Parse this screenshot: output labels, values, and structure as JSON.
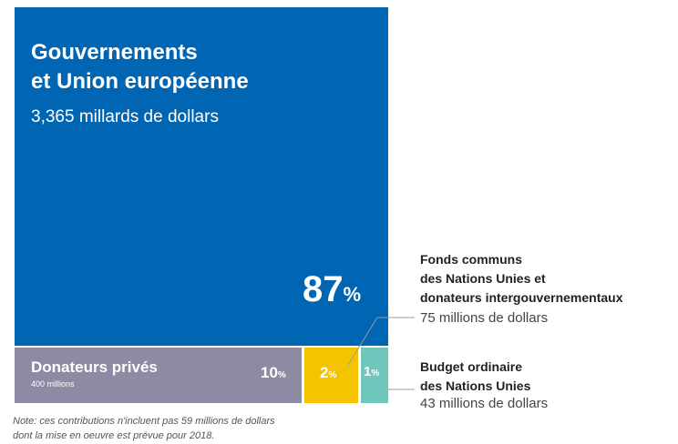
{
  "chart_data": {
    "type": "treemap",
    "segments": [
      {
        "name": "Gouvernements et Union européenne",
        "name_lines": [
          "Gouvernements",
          "et Union européenne"
        ],
        "amount": "3,365 millards de dollars",
        "percent": 87,
        "color": "#0066b3"
      },
      {
        "name": "Donateurs privés",
        "amount": "400 millions",
        "percent": 10,
        "color": "#8d8ba3"
      },
      {
        "name": "Fonds communs des Nations Unies et donateurs intergouvernementaux",
        "name_lines": [
          "Fonds communs",
          "des Nations Unies et",
          "donateurs intergouvernementaux"
        ],
        "amount": "75 millions de dollars",
        "percent": 2,
        "color": "#f5c400"
      },
      {
        "name": "Budget ordinaire des Nations Unies",
        "name_lines": [
          "Budget ordinaire",
          "des Nations Unies"
        ],
        "amount": "43 millions de dollars",
        "percent": 1,
        "color": "#6fc6bb"
      }
    ],
    "percent_symbol": "%"
  },
  "note_lines": [
    "Note: ces contributions n'incluent pas 59 millions de dollars",
    "dont la mise en oeuvre est prévue pour 2018."
  ]
}
